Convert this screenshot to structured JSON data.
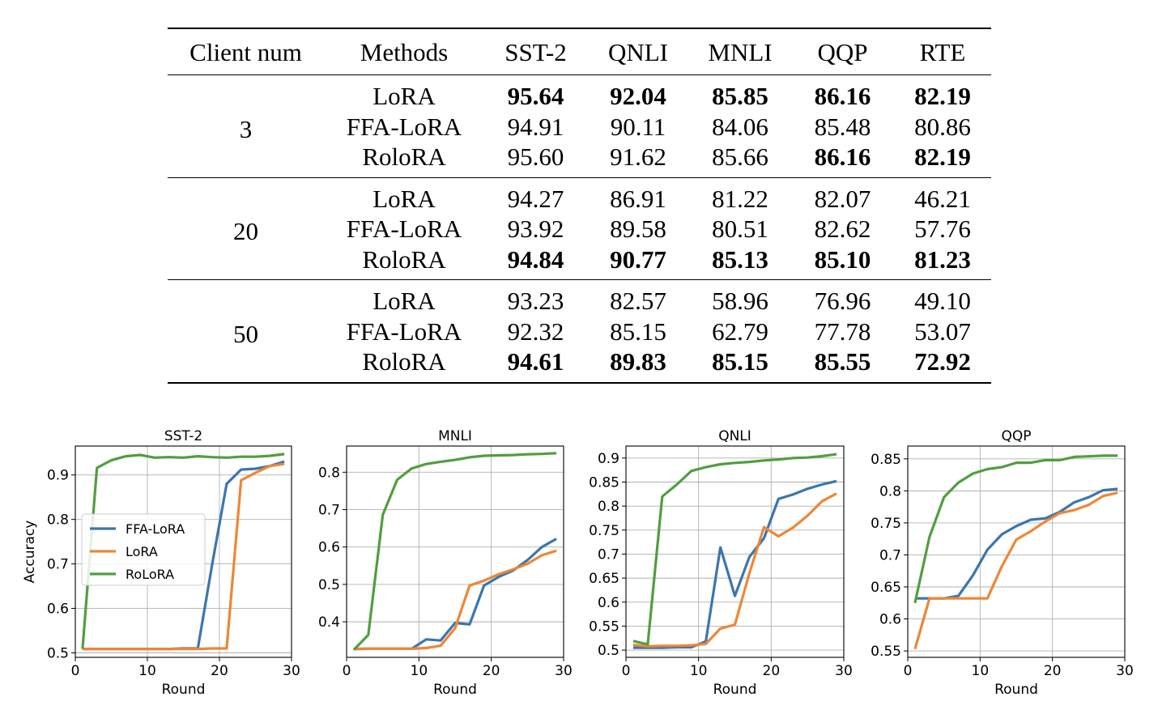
{
  "table": {
    "headers": [
      "Client num",
      "Methods",
      "SST-2",
      "QNLI",
      "MNLI",
      "QQP",
      "RTE"
    ],
    "groups": [
      {
        "client_num": "3",
        "rows": [
          {
            "method": "LoRA",
            "values": [
              "95.64",
              "92.04",
              "85.85",
              "86.16",
              "82.19"
            ],
            "bold": [
              true,
              true,
              true,
              true,
              true
            ]
          },
          {
            "method": "FFA-LoRA",
            "values": [
              "94.91",
              "90.11",
              "84.06",
              "85.48",
              "80.86"
            ],
            "bold": [
              false,
              false,
              false,
              false,
              false
            ]
          },
          {
            "method": "RoloRA",
            "values": [
              "95.60",
              "91.62",
              "85.66",
              "86.16",
              "82.19"
            ],
            "bold": [
              false,
              false,
              false,
              true,
              true
            ]
          }
        ]
      },
      {
        "client_num": "20",
        "rows": [
          {
            "method": "LoRA",
            "values": [
              "94.27",
              "86.91",
              "81.22",
              "82.07",
              "46.21"
            ],
            "bold": [
              false,
              false,
              false,
              false,
              false
            ]
          },
          {
            "method": "FFA-LoRA",
            "values": [
              "93.92",
              "89.58",
              "80.51",
              "82.62",
              "57.76"
            ],
            "bold": [
              false,
              false,
              false,
              false,
              false
            ]
          },
          {
            "method": "RoloRA",
            "values": [
              "94.84",
              "90.77",
              "85.13",
              "85.10",
              "81.23"
            ],
            "bold": [
              true,
              true,
              true,
              true,
              true
            ]
          }
        ]
      },
      {
        "client_num": "50",
        "rows": [
          {
            "method": "LoRA",
            "values": [
              "93.23",
              "82.57",
              "58.96",
              "76.96",
              "49.10"
            ],
            "bold": [
              false,
              false,
              false,
              false,
              false
            ]
          },
          {
            "method": "FFA-LoRA",
            "values": [
              "92.32",
              "85.15",
              "62.79",
              "77.78",
              "53.07"
            ],
            "bold": [
              false,
              false,
              false,
              false,
              false
            ]
          },
          {
            "method": "RoloRA",
            "values": [
              "94.61",
              "89.83",
              "85.15",
              "85.55",
              "72.92"
            ],
            "bold": [
              true,
              true,
              true,
              true,
              true
            ]
          }
        ]
      }
    ]
  },
  "chart_data": [
    {
      "type": "line",
      "title": "SST-2",
      "xlabel": "Round",
      "ylabel": "Accuracy",
      "xlim": [
        0,
        30
      ],
      "ylim": [
        0.49,
        0.965
      ],
      "xticks": [
        0,
        10,
        20,
        30
      ],
      "yticks": [
        0.5,
        0.6,
        0.7,
        0.8,
        0.9
      ],
      "grid": true,
      "legend": "center-left",
      "x": [
        1,
        3,
        5,
        7,
        9,
        11,
        13,
        15,
        17,
        19,
        21,
        23,
        25,
        27,
        29
      ],
      "series": [
        {
          "name": "FFA-LoRA",
          "color": "#3a76af",
          "values": [
            0.509,
            0.509,
            0.509,
            0.509,
            0.509,
            0.509,
            0.509,
            0.51,
            0.51,
            0.7,
            0.88,
            0.912,
            0.914,
            0.92,
            0.93
          ]
        },
        {
          "name": "LoRA",
          "color": "#ef8636",
          "values": [
            0.509,
            0.509,
            0.509,
            0.509,
            0.509,
            0.509,
            0.509,
            0.509,
            0.509,
            0.51,
            0.51,
            0.888,
            0.905,
            0.92,
            0.925
          ]
        },
        {
          "name": "RoLoRA",
          "color": "#519e3e",
          "values": [
            0.509,
            0.916,
            0.933,
            0.942,
            0.945,
            0.939,
            0.94,
            0.939,
            0.942,
            0.94,
            0.939,
            0.941,
            0.941,
            0.943,
            0.947
          ]
        }
      ]
    },
    {
      "type": "line",
      "title": "MNLI",
      "xlabel": "Round",
      "ylabel": "",
      "xlim": [
        0,
        30
      ],
      "ylim": [
        0.305,
        0.87
      ],
      "xticks": [
        0,
        10,
        20,
        30
      ],
      "yticks": [
        0.4,
        0.5,
        0.6,
        0.7,
        0.8
      ],
      "grid": true,
      "x": [
        1,
        3,
        5,
        7,
        9,
        11,
        13,
        15,
        17,
        19,
        21,
        23,
        25,
        27,
        29
      ],
      "series": [
        {
          "name": "FFA-LoRA",
          "color": "#3a76af",
          "values": [
            0.327,
            0.328,
            0.328,
            0.328,
            0.328,
            0.353,
            0.35,
            0.397,
            0.393,
            0.497,
            0.52,
            0.537,
            0.565,
            0.6,
            0.622
          ]
        },
        {
          "name": "LoRA",
          "color": "#ef8636",
          "values": [
            0.328,
            0.328,
            0.328,
            0.328,
            0.328,
            0.33,
            0.336,
            0.383,
            0.497,
            0.51,
            0.527,
            0.54,
            0.555,
            0.578,
            0.59
          ]
        },
        {
          "name": "RoLoRA",
          "color": "#519e3e",
          "values": [
            0.325,
            0.365,
            0.686,
            0.78,
            0.81,
            0.822,
            0.828,
            0.833,
            0.84,
            0.844,
            0.845,
            0.846,
            0.848,
            0.849,
            0.851
          ]
        }
      ]
    },
    {
      "type": "line",
      "title": "QNLI",
      "xlabel": "Round",
      "ylabel": "",
      "xlim": [
        0,
        30
      ],
      "ylim": [
        0.485,
        0.925
      ],
      "xticks": [
        0,
        10,
        20,
        30
      ],
      "yticks": [
        0.5,
        0.55,
        0.6,
        0.65,
        0.7,
        0.75,
        0.8,
        0.85,
        0.9
      ],
      "grid": true,
      "x": [
        1,
        3,
        5,
        7,
        9,
        11,
        13,
        15,
        17,
        19,
        21,
        23,
        25,
        27,
        29
      ],
      "series": [
        {
          "name": "FFA-LoRA",
          "color": "#3a76af",
          "values": [
            0.505,
            0.505,
            0.505,
            0.506,
            0.506,
            0.518,
            0.714,
            0.613,
            0.694,
            0.733,
            0.815,
            0.824,
            0.836,
            0.845,
            0.852
          ]
        },
        {
          "name": "LoRA",
          "color": "#ef8636",
          "values": [
            0.511,
            0.508,
            0.509,
            0.509,
            0.51,
            0.513,
            0.545,
            0.553,
            0.66,
            0.756,
            0.737,
            0.755,
            0.78,
            0.81,
            0.826
          ]
        },
        {
          "name": "RoLoRA",
          "color": "#519e3e",
          "values": [
            0.519,
            0.512,
            0.82,
            0.845,
            0.873,
            0.881,
            0.887,
            0.89,
            0.892,
            0.895,
            0.897,
            0.9,
            0.901,
            0.904,
            0.908
          ]
        }
      ]
    },
    {
      "type": "line",
      "title": "QQP",
      "xlabel": "Round",
      "ylabel": "",
      "xlim": [
        0,
        30
      ],
      "ylim": [
        0.54,
        0.87
      ],
      "xticks": [
        0,
        10,
        20,
        30
      ],
      "yticks": [
        0.55,
        0.6,
        0.65,
        0.7,
        0.75,
        0.8,
        0.85
      ],
      "grid": true,
      "x": [
        1,
        3,
        5,
        7,
        9,
        11,
        13,
        15,
        17,
        19,
        21,
        23,
        25,
        27,
        29
      ],
      "series": [
        {
          "name": "FFA-LoRA",
          "color": "#3a76af",
          "values": [
            0.632,
            0.632,
            0.632,
            0.636,
            0.668,
            0.708,
            0.732,
            0.745,
            0.755,
            0.757,
            0.767,
            0.782,
            0.79,
            0.801,
            0.803
          ]
        },
        {
          "name": "LoRA",
          "color": "#ef8636",
          "values": [
            0.553,
            0.632,
            0.632,
            0.632,
            0.632,
            0.632,
            0.682,
            0.724,
            0.737,
            0.752,
            0.765,
            0.77,
            0.778,
            0.792,
            0.797
          ]
        },
        {
          "name": "RoLoRA",
          "color": "#519e3e",
          "values": [
            0.625,
            0.728,
            0.79,
            0.813,
            0.827,
            0.834,
            0.837,
            0.844,
            0.844,
            0.848,
            0.848,
            0.853,
            0.854,
            0.855,
            0.855
          ]
        }
      ]
    }
  ]
}
